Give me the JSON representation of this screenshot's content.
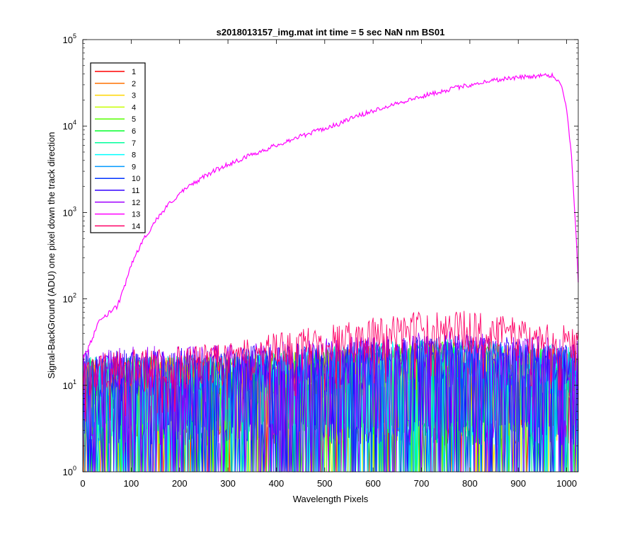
{
  "chart_data": {
    "type": "line",
    "title": "s2018013157_img.mat int time = 5 sec  NaN nm BS01",
    "xlabel": "Wavelength Pixels",
    "ylabel": "Signal-BackGround (ADU) one pixel down the track direction",
    "xlim": [
      0,
      1024
    ],
    "ylim": [
      1,
      100000
    ],
    "yscale": "log",
    "x_ticks": [
      "0",
      "100",
      "200",
      "300",
      "400",
      "500",
      "600",
      "700",
      "800",
      "900",
      "1000"
    ],
    "y_ticks": [
      {
        "base": "10",
        "exp": "0"
      },
      {
        "base": "10",
        "exp": "1"
      },
      {
        "base": "10",
        "exp": "2"
      },
      {
        "base": "10",
        "exp": "3"
      },
      {
        "base": "10",
        "exp": "4"
      },
      {
        "base": "10",
        "exp": "5"
      }
    ],
    "grid": false,
    "legend_position": "top-left",
    "series": [
      {
        "name": "1",
        "color": "#ff0000",
        "profile": "noise",
        "level": 12
      },
      {
        "name": "2",
        "color": "#ff7200",
        "profile": "noise",
        "level": 12
      },
      {
        "name": "3",
        "color": "#ffd500",
        "profile": "noise",
        "level": 12
      },
      {
        "name": "4",
        "color": "#c6ff00",
        "profile": "noise",
        "level": 12
      },
      {
        "name": "5",
        "color": "#55ff00",
        "profile": "noise",
        "level": 12
      },
      {
        "name": "6",
        "color": "#00ff2a",
        "profile": "noise",
        "level": 12
      },
      {
        "name": "7",
        "color": "#00ff9c",
        "profile": "noise",
        "level": 13
      },
      {
        "name": "8",
        "color": "#00ffff",
        "profile": "noise",
        "level": 13
      },
      {
        "name": "9",
        "color": "#0099ff",
        "profile": "noise",
        "level": 13
      },
      {
        "name": "10",
        "color": "#0033ff",
        "profile": "noise",
        "level": 14
      },
      {
        "name": "11",
        "color": "#3300ff",
        "profile": "noise",
        "level": 15
      },
      {
        "name": "12",
        "color": "#a000ff",
        "profile": "noise",
        "level": 16
      },
      {
        "name": "13",
        "color": "#ff00ff",
        "profile": "signal",
        "points": [
          [
            5,
            22
          ],
          [
            20,
            35
          ],
          [
            30,
            50
          ],
          [
            40,
            60
          ],
          [
            50,
            65
          ],
          [
            60,
            75
          ],
          [
            70,
            80
          ],
          [
            80,
            110
          ],
          [
            90,
            160
          ],
          [
            100,
            250
          ],
          [
            110,
            330
          ],
          [
            125,
            480
          ],
          [
            150,
            800
          ],
          [
            175,
            1200
          ],
          [
            200,
            1650
          ],
          [
            225,
            2100
          ],
          [
            250,
            2600
          ],
          [
            275,
            3100
          ],
          [
            300,
            3600
          ],
          [
            325,
            4100
          ],
          [
            350,
            4700
          ],
          [
            375,
            5300
          ],
          [
            400,
            6000
          ],
          [
            425,
            6800
          ],
          [
            450,
            7600
          ],
          [
            475,
            8500
          ],
          [
            500,
            9400
          ],
          [
            525,
            10400
          ],
          [
            550,
            12000
          ],
          [
            575,
            13500
          ],
          [
            600,
            15000
          ],
          [
            625,
            16800
          ],
          [
            650,
            18500
          ],
          [
            675,
            20000
          ],
          [
            700,
            22000
          ],
          [
            725,
            24000
          ],
          [
            750,
            26000
          ],
          [
            775,
            28000
          ],
          [
            800,
            30000
          ],
          [
            825,
            32000
          ],
          [
            850,
            34000
          ],
          [
            875,
            35500
          ],
          [
            900,
            36500
          ],
          [
            925,
            37500
          ],
          [
            950,
            38500
          ],
          [
            960,
            39000
          ],
          [
            970,
            38500
          ],
          [
            980,
            35000
          ],
          [
            990,
            28000
          ],
          [
            1000,
            16000
          ],
          [
            1010,
            4500
          ],
          [
            1015,
            1500
          ],
          [
            1020,
            500
          ],
          [
            1024,
            160
          ]
        ]
      },
      {
        "name": "14",
        "color": "#ff0066",
        "profile": "band",
        "points": [
          [
            0,
            15
          ],
          [
            100,
            18
          ],
          [
            200,
            20
          ],
          [
            300,
            21
          ],
          [
            400,
            28
          ],
          [
            500,
            35
          ],
          [
            600,
            42
          ],
          [
            700,
            50
          ],
          [
            750,
            52
          ],
          [
            800,
            50
          ],
          [
            900,
            42
          ],
          [
            1000,
            34
          ],
          [
            1024,
            30
          ]
        ]
      }
    ]
  }
}
